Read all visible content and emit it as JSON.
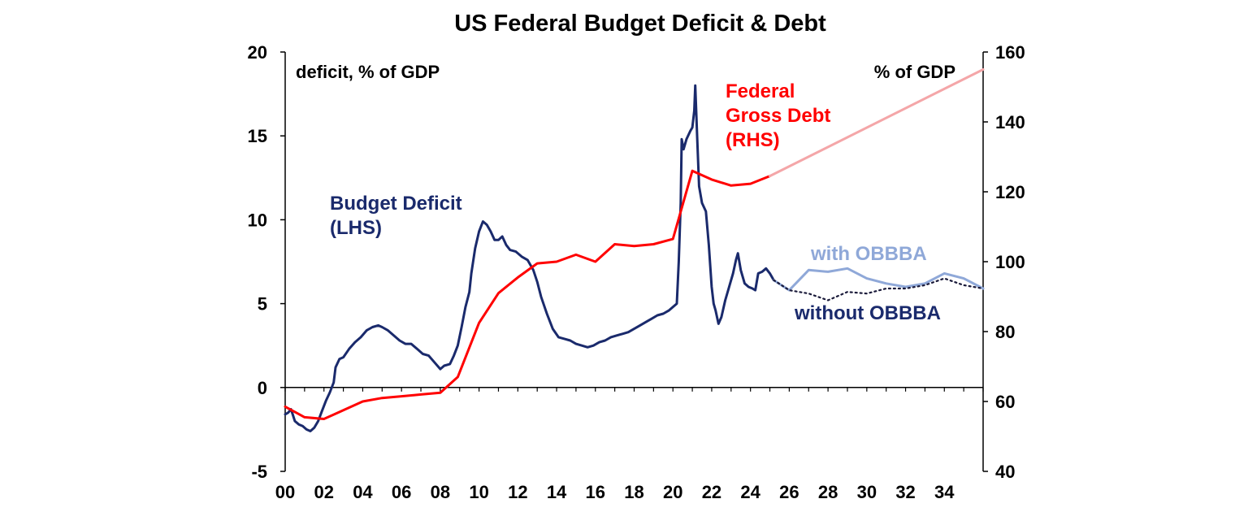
{
  "chart_data": {
    "type": "line",
    "title": "US Federal Budget Deficit & Debt",
    "left_axis": {
      "label": "deficit, % of GDP",
      "range": [
        -5,
        20
      ],
      "ticks": [
        "-5",
        "0",
        "5",
        "10",
        "15",
        "20"
      ]
    },
    "right_axis": {
      "label": "% of GDP",
      "range": [
        40,
        160
      ],
      "ticks": [
        "40",
        "60",
        "80",
        "100",
        "120",
        "140",
        "160"
      ]
    },
    "x_axis": {
      "range": [
        2000,
        2036
      ],
      "ticks": [
        "00",
        "02",
        "04",
        "06",
        "08",
        "10",
        "12",
        "14",
        "16",
        "18",
        "20",
        "22",
        "24",
        "26",
        "28",
        "30",
        "32",
        "34"
      ]
    },
    "grid": false,
    "colors": {
      "deficit": "#1a2a6c",
      "debt": "#ff0000",
      "debt_projection": "#f4a6a8",
      "with_obbba": "#8fa8d8",
      "axis": "#000000"
    },
    "annotations": {
      "deficit": "Budget Deficit\n(LHS)",
      "debt": "Federal\nGross Debt\n(RHS)",
      "with_obbba": "with OBBBA",
      "without_obbba": "without OBBBA"
    },
    "series": [
      {
        "name": "Budget Deficit (LHS)",
        "axis": "left",
        "style": "solid",
        "points": [
          [
            2000.0,
            -1.6
          ],
          [
            2000.15,
            -1.5
          ],
          [
            2000.3,
            -1.3
          ],
          [
            2000.5,
            -2.0
          ],
          [
            2000.7,
            -2.2
          ],
          [
            2000.9,
            -2.3
          ],
          [
            2001.1,
            -2.5
          ],
          [
            2001.3,
            -2.6
          ],
          [
            2001.5,
            -2.4
          ],
          [
            2001.7,
            -2.0
          ],
          [
            2001.9,
            -1.4
          ],
          [
            2002.1,
            -0.8
          ],
          [
            2002.3,
            -0.3
          ],
          [
            2002.5,
            0.3
          ],
          [
            2002.6,
            1.2
          ],
          [
            2002.8,
            1.7
          ],
          [
            2003.0,
            1.8
          ],
          [
            2003.3,
            2.3
          ],
          [
            2003.6,
            2.7
          ],
          [
            2003.9,
            3.0
          ],
          [
            2004.2,
            3.4
          ],
          [
            2004.5,
            3.6
          ],
          [
            2004.8,
            3.7
          ],
          [
            2005.0,
            3.6
          ],
          [
            2005.3,
            3.4
          ],
          [
            2005.6,
            3.1
          ],
          [
            2005.9,
            2.8
          ],
          [
            2006.2,
            2.6
          ],
          [
            2006.5,
            2.6
          ],
          [
            2006.8,
            2.3
          ],
          [
            2007.1,
            2.0
          ],
          [
            2007.4,
            1.9
          ],
          [
            2007.7,
            1.5
          ],
          [
            2008.0,
            1.1
          ],
          [
            2008.2,
            1.3
          ],
          [
            2008.5,
            1.4
          ],
          [
            2008.7,
            1.9
          ],
          [
            2008.9,
            2.5
          ],
          [
            2009.1,
            3.6
          ],
          [
            2009.3,
            4.8
          ],
          [
            2009.5,
            5.7
          ],
          [
            2009.6,
            6.8
          ],
          [
            2009.8,
            8.3
          ],
          [
            2010.0,
            9.3
          ],
          [
            2010.2,
            9.9
          ],
          [
            2010.4,
            9.7
          ],
          [
            2010.6,
            9.3
          ],
          [
            2010.8,
            8.8
          ],
          [
            2011.0,
            8.8
          ],
          [
            2011.2,
            9.0
          ],
          [
            2011.4,
            8.5
          ],
          [
            2011.6,
            8.2
          ],
          [
            2011.9,
            8.1
          ],
          [
            2012.2,
            7.8
          ],
          [
            2012.5,
            7.6
          ],
          [
            2012.8,
            7.0
          ],
          [
            2013.0,
            6.3
          ],
          [
            2013.2,
            5.4
          ],
          [
            2013.5,
            4.4
          ],
          [
            2013.8,
            3.5
          ],
          [
            2014.1,
            3.0
          ],
          [
            2014.4,
            2.9
          ],
          [
            2014.7,
            2.8
          ],
          [
            2015.0,
            2.6
          ],
          [
            2015.3,
            2.5
          ],
          [
            2015.6,
            2.4
          ],
          [
            2015.9,
            2.5
          ],
          [
            2016.2,
            2.7
          ],
          [
            2016.5,
            2.8
          ],
          [
            2016.8,
            3.0
          ],
          [
            2017.1,
            3.1
          ],
          [
            2017.4,
            3.2
          ],
          [
            2017.7,
            3.3
          ],
          [
            2018.0,
            3.5
          ],
          [
            2018.3,
            3.7
          ],
          [
            2018.6,
            3.9
          ],
          [
            2018.9,
            4.1
          ],
          [
            2019.2,
            4.3
          ],
          [
            2019.5,
            4.4
          ],
          [
            2019.8,
            4.6
          ],
          [
            2020.0,
            4.8
          ],
          [
            2020.2,
            5.0
          ],
          [
            2020.3,
            7.5
          ],
          [
            2020.4,
            11.0
          ],
          [
            2020.45,
            14.8
          ],
          [
            2020.55,
            14.2
          ],
          [
            2020.7,
            14.8
          ],
          [
            2020.9,
            15.3
          ],
          [
            2021.0,
            15.5
          ],
          [
            2021.1,
            16.5
          ],
          [
            2021.15,
            18.0
          ],
          [
            2021.25,
            15.0
          ],
          [
            2021.35,
            12.0
          ],
          [
            2021.5,
            11.0
          ],
          [
            2021.7,
            10.5
          ],
          [
            2021.85,
            8.5
          ],
          [
            2022.0,
            6.0
          ],
          [
            2022.1,
            5.0
          ],
          [
            2022.2,
            4.6
          ],
          [
            2022.35,
            3.8
          ],
          [
            2022.5,
            4.2
          ],
          [
            2022.7,
            5.2
          ],
          [
            2022.9,
            6.0
          ],
          [
            2023.1,
            6.8
          ],
          [
            2023.25,
            7.6
          ],
          [
            2023.35,
            8.0
          ],
          [
            2023.5,
            7.0
          ],
          [
            2023.7,
            6.2
          ],
          [
            2023.9,
            6.0
          ],
          [
            2024.1,
            5.9
          ],
          [
            2024.25,
            5.8
          ],
          [
            2024.4,
            6.8
          ],
          [
            2024.6,
            6.9
          ],
          [
            2024.8,
            7.1
          ],
          [
            2025.0,
            6.8
          ],
          [
            2025.2,
            6.4
          ]
        ]
      },
      {
        "name": "Federal Gross Debt (RHS)",
        "axis": "right",
        "style": "solid",
        "points": [
          [
            2000,
            58.5
          ],
          [
            2001,
            55.5
          ],
          [
            2002,
            55.0
          ],
          [
            2003,
            57.5
          ],
          [
            2004,
            60.0
          ],
          [
            2005,
            61.0
          ],
          [
            2006,
            61.5
          ],
          [
            2007,
            62.0
          ],
          [
            2008,
            62.5
          ],
          [
            2008.9,
            67.0
          ],
          [
            2010,
            82.5
          ],
          [
            2011,
            91.0
          ],
          [
            2012,
            95.5
          ],
          [
            2013,
            99.5
          ],
          [
            2014,
            100.0
          ],
          [
            2015,
            102.0
          ],
          [
            2016,
            100.0
          ],
          [
            2017,
            105.0
          ],
          [
            2018,
            104.5
          ],
          [
            2019,
            105.0
          ],
          [
            2020,
            106.5
          ],
          [
            2021,
            126.0
          ],
          [
            2022,
            123.5
          ],
          [
            2023,
            121.8
          ],
          [
            2024,
            122.3
          ],
          [
            2025,
            124.5
          ]
        ]
      },
      {
        "name": "Federal Gross Debt projection (RHS)",
        "axis": "right",
        "style": "solid",
        "points": [
          [
            2025,
            124.5
          ],
          [
            2036,
            155.0
          ]
        ]
      },
      {
        "name": "with OBBBA",
        "axis": "left",
        "style": "solid",
        "points": [
          [
            2025.2,
            6.4
          ],
          [
            2026,
            5.8
          ],
          [
            2027,
            7.0
          ],
          [
            2028,
            6.9
          ],
          [
            2029,
            7.1
          ],
          [
            2030,
            6.5
          ],
          [
            2031,
            6.2
          ],
          [
            2032,
            6.0
          ],
          [
            2033,
            6.2
          ],
          [
            2034,
            6.8
          ],
          [
            2035,
            6.5
          ],
          [
            2036,
            5.9
          ]
        ]
      },
      {
        "name": "without OBBBA",
        "axis": "left",
        "style": "dotted",
        "points": [
          [
            2025.2,
            6.4
          ],
          [
            2026,
            5.8
          ],
          [
            2027,
            5.6
          ],
          [
            2028,
            5.2
          ],
          [
            2029,
            5.7
          ],
          [
            2030,
            5.6
          ],
          [
            2031,
            5.9
          ],
          [
            2032,
            5.9
          ],
          [
            2033,
            6.1
          ],
          [
            2034,
            6.5
          ],
          [
            2035,
            6.1
          ],
          [
            2036,
            5.9
          ]
        ]
      }
    ]
  }
}
